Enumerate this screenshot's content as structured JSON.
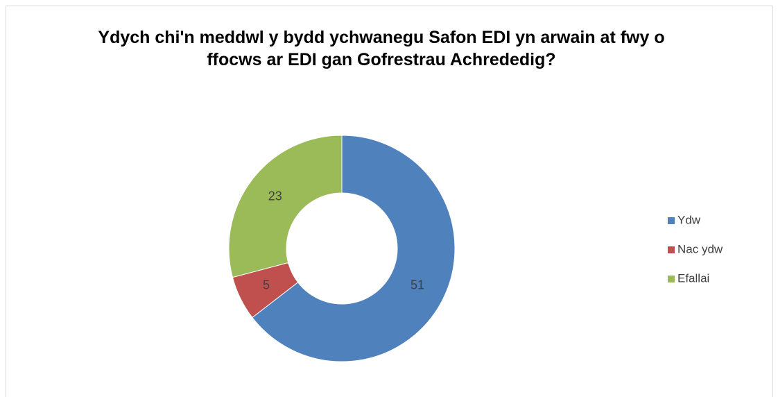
{
  "chart_data": {
    "type": "donut",
    "title": "Ydych chi'n meddwl y bydd ychwanegu Safon EDI yn arwain at fwy o ffocws ar EDI gan Gofrestrau Achrededig?",
    "categories": [
      "Ydw",
      "Nac ydw",
      "Efallai"
    ],
    "values": [
      51,
      5,
      23
    ],
    "colors": [
      "#4f81bd",
      "#c0504d",
      "#9bbb59"
    ],
    "legend": "right"
  }
}
